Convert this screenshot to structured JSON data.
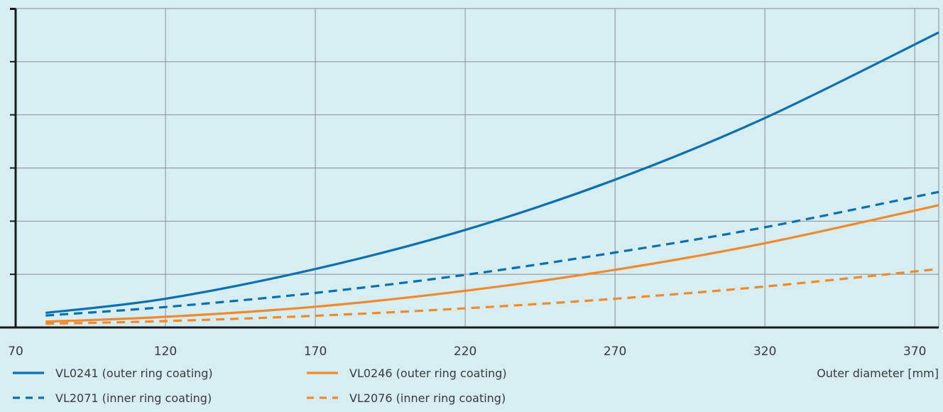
{
  "chart_data": {
    "type": "line",
    "title": "",
    "xlabel": "Outer diameter [mm]",
    "ylabel": "",
    "xlim": [
      70,
      378
    ],
    "ylim": [
      0,
      12
    ],
    "x_ticks": [
      "70",
      "120",
      "170",
      "220",
      "270",
      "320",
      "370"
    ],
    "y_ticks": [
      0,
      2,
      4,
      6,
      8,
      10,
      12
    ],
    "y_tick_labels_visible": false,
    "grid": true,
    "legend_placement": "bottom",
    "series": [
      {
        "name": "VL0241 (outer ring coating)",
        "color": "#0b6fb0",
        "style": "solid",
        "x": [
          80,
          120,
          170,
          220,
          270,
          320,
          378
        ],
        "y": [
          0.55,
          1.08,
          2.2,
          3.67,
          5.56,
          7.88,
          11.1
        ]
      },
      {
        "name": "VL2071 (inner ring coating)",
        "color": "#0b6fb0",
        "style": "dashed",
        "x": [
          80,
          120,
          170,
          220,
          270,
          320,
          378
        ],
        "y": [
          0.45,
          0.77,
          1.3,
          1.98,
          2.82,
          3.77,
          5.1
        ]
      },
      {
        "name": "VL0246 (outer ring coating)",
        "color": "#f08a2c",
        "style": "solid",
        "x": [
          80,
          120,
          170,
          220,
          270,
          320,
          378
        ],
        "y": [
          0.22,
          0.4,
          0.78,
          1.38,
          2.17,
          3.17,
          4.6
        ]
      },
      {
        "name": "VL2076 (inner ring coating)",
        "color": "#f08a2c",
        "style": "dashed",
        "x": [
          80,
          120,
          170,
          220,
          270,
          320,
          378
        ],
        "y": [
          0.14,
          0.24,
          0.44,
          0.72,
          1.08,
          1.54,
          2.2
        ]
      }
    ]
  },
  "colors": {
    "background": "#d6edf2",
    "grid": "#8a8f93",
    "axis": "#1a1a1a"
  }
}
